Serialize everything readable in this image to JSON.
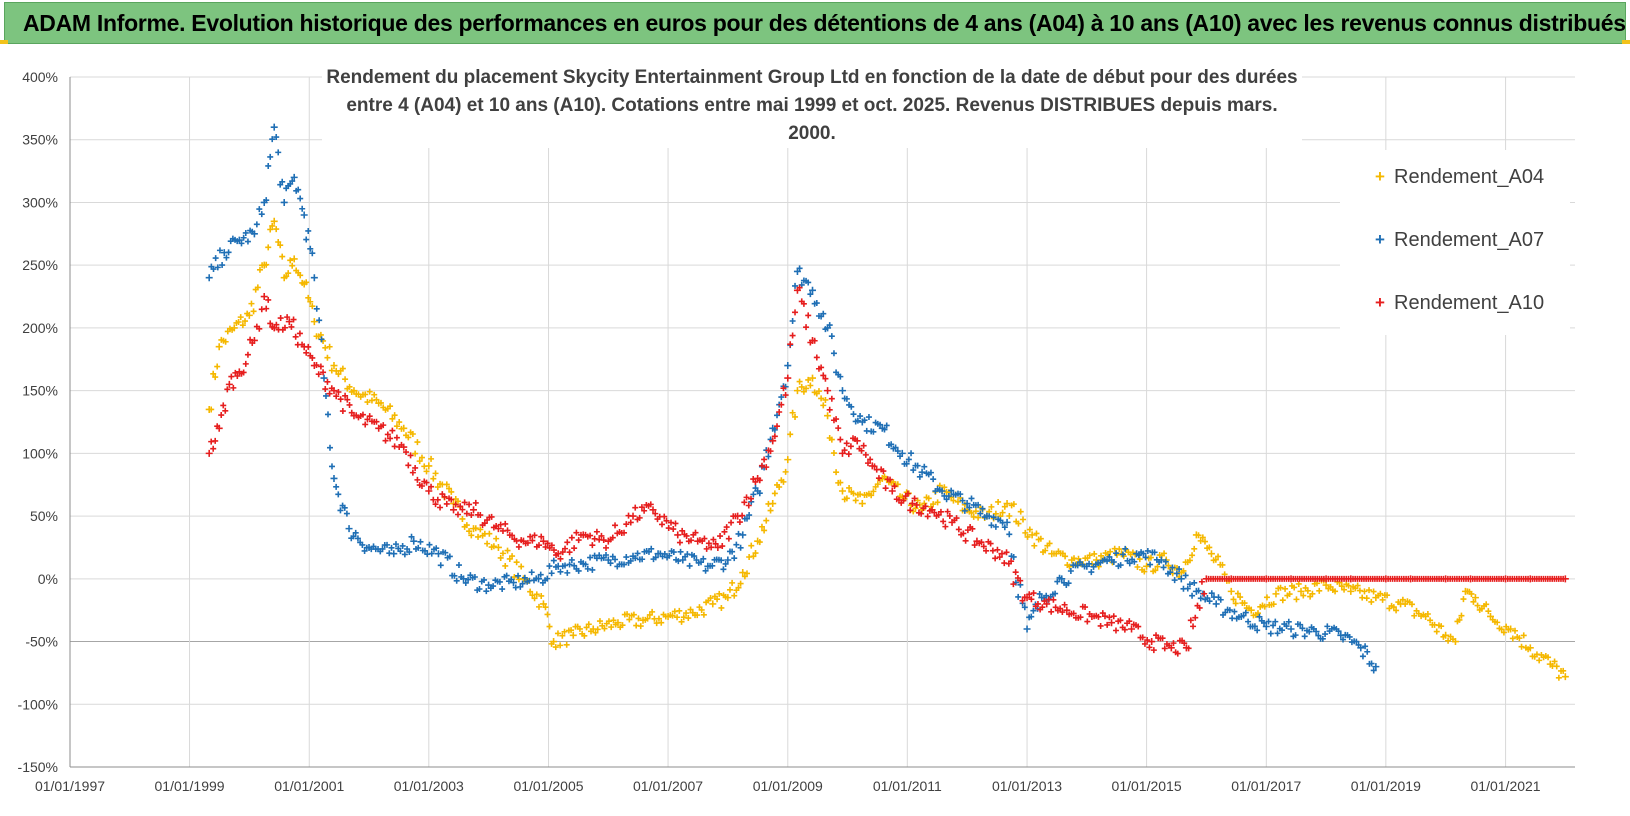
{
  "header": {
    "title": "ADAM Informe. Evolution historique des performances en euros pour des détentions de 4 ans (A04) à 10 ans (A10) avec les revenus connus distribués"
  },
  "colors": {
    "banner": "#7dc47f",
    "A04": "#f5b800",
    "A07": "#1f6fb5",
    "A10": "#e61e1e",
    "grid": "#d9d9d9",
    "zero_line": "#a6a6a6"
  },
  "chart_data": {
    "type": "scatter",
    "title_line1": "Rendement du placement Skycity Entertainment Group Ltd en fonction de la date de début pour des durées",
    "title_line2": "entre 4 (A04) et 10 ans (A10). Cotations entre mai 1999 et oct. 2025. Revenus DISTRIBUES depuis mars. 2000.",
    "xlabel": "",
    "ylabel": "",
    "grid": true,
    "legend_position": "right",
    "x_axis": {
      "type": "date",
      "range": [
        "1997-01-01",
        "2022-03-01"
      ],
      "ticks": [
        "01/01/1997",
        "01/01/1999",
        "01/01/2001",
        "01/01/2003",
        "01/01/2005",
        "01/01/2007",
        "01/01/2009",
        "01/01/2011",
        "01/01/2013",
        "01/01/2015",
        "01/01/2017",
        "01/01/2019",
        "01/01/2021"
      ]
    },
    "y_axis": {
      "range": [
        -150,
        400
      ],
      "unit": "%",
      "ticks": [
        "400%",
        "350%",
        "300%",
        "250%",
        "200%",
        "150%",
        "100%",
        "50%",
        "0%",
        "-50%",
        "-100%",
        "-150%"
      ],
      "tick_values": [
        400,
        350,
        300,
        250,
        200,
        150,
        100,
        50,
        0,
        -50,
        -100,
        -150
      ]
    },
    "series": [
      {
        "name": "Rendement_A04",
        "color": "#f5b800",
        "x": [
          "1999-05-01",
          "1999-07-01",
          "1999-10-01",
          "2000-01-01",
          "2000-04-01",
          "2000-06-01",
          "2000-08-01",
          "2000-10-01",
          "2000-12-01",
          "2001-02-01",
          "2001-06-01",
          "2001-10-01",
          "2002-03-01",
          "2002-08-01",
          "2003-01-01",
          "2003-06-01",
          "2003-10-01",
          "2004-03-01",
          "2004-08-01",
          "2004-12-01",
          "2005-02-01",
          "2005-06-01",
          "2005-10-01",
          "2006-03-01",
          "2006-08-01",
          "2007-01-01",
          "2007-06-01",
          "2007-10-01",
          "2008-01-01",
          "2008-04-01",
          "2008-07-01",
          "2008-10-01",
          "2009-01-01",
          "2009-03-01",
          "2009-06-01",
          "2009-09-01",
          "2009-12-01",
          "2010-04-01",
          "2010-08-01",
          "2010-12-01",
          "2011-04-01",
          "2011-08-01",
          "2012-01-01",
          "2012-05-01",
          "2012-09-01",
          "2013-02-01",
          "2013-06-01",
          "2013-10-01",
          "2014-03-01",
          "2014-08-01",
          "2015-01-01",
          "2015-05-01",
          "2015-08-01",
          "2015-11-01",
          "2016-02-01",
          "2016-06-01",
          "2016-10-01",
          "2017-03-01",
          "2017-08-01",
          "2018-01-01",
          "2018-06-01",
          "2018-11-01",
          "2019-04-01",
          "2019-09-01",
          "2020-01-01",
          "2020-03-01",
          "2020-05-01",
          "2020-07-01",
          "2020-10-01",
          "2021-02-01",
          "2021-06-01",
          "2021-10-01",
          "2022-01-01"
        ],
        "values": [
          135,
          185,
          200,
          210,
          250,
          285,
          240,
          255,
          235,
          205,
          170,
          150,
          140,
          120,
          90,
          60,
          40,
          25,
          0,
          -20,
          -50,
          -45,
          -40,
          -35,
          -33,
          -30,
          -27,
          -20,
          -15,
          5,
          30,
          60,
          95,
          150,
          160,
          130,
          70,
          60,
          80,
          65,
          55,
          70,
          55,
          50,
          60,
          35,
          20,
          15,
          15,
          20,
          10,
          15,
          5,
          35,
          20,
          -10,
          -25,
          -12,
          -10,
          -5,
          -10,
          -15,
          -20,
          -30,
          -45,
          -50,
          -10,
          -15,
          -30,
          -40,
          -55,
          -68,
          -78
        ]
      },
      {
        "name": "Rendement_A07",
        "color": "#1f6fb5",
        "x": [
          "1999-05-01",
          "1999-08-01",
          "1999-11-01",
          "2000-02-01",
          "2000-04-01",
          "2000-06-01",
          "2000-08-01",
          "2000-10-01",
          "2000-12-01",
          "2001-02-01",
          "2001-04-01",
          "2001-06-01",
          "2001-09-01",
          "2002-01-01",
          "2002-06-01",
          "2002-10-01",
          "2003-03-01",
          "2003-08-01",
          "2004-01-01",
          "2004-06-01",
          "2004-11-01",
          "2005-03-01",
          "2005-08-01",
          "2006-01-01",
          "2006-06-01",
          "2006-11-01",
          "2007-04-01",
          "2007-09-01",
          "2008-01-01",
          "2008-04-01",
          "2008-07-01",
          "2008-10-01",
          "2009-01-01",
          "2009-03-01",
          "2009-06-01",
          "2009-09-01",
          "2009-12-01",
          "2010-04-01",
          "2010-08-01",
          "2010-12-01",
          "2011-04-01",
          "2011-08-01",
          "2012-01-01",
          "2012-05-01",
          "2012-09-01",
          "2013-01-01",
          "2013-04-01",
          "2013-08-01",
          "2014-01-01",
          "2014-06-01",
          "2014-11-01",
          "2015-04-01",
          "2015-08-01",
          "2015-11-01",
          "2016-03-01",
          "2016-08-01",
          "2017-01-01",
          "2017-06-01",
          "2017-11-01",
          "2018-04-01",
          "2018-08-01",
          "2018-11-01"
        ],
        "values": [
          240,
          260,
          270,
          275,
          300,
          360,
          300,
          320,
          290,
          240,
          160,
          80,
          40,
          25,
          20,
          30,
          20,
          0,
          -5,
          -3,
          0,
          10,
          12,
          15,
          18,
          20,
          15,
          10,
          15,
          35,
          70,
          120,
          170,
          245,
          230,
          200,
          150,
          125,
          120,
          100,
          85,
          70,
          60,
          50,
          45,
          -40,
          -15,
          0,
          10,
          15,
          20,
          15,
          0,
          -10,
          -20,
          -30,
          -38,
          -40,
          -42,
          -45,
          -55,
          -70
        ]
      },
      {
        "name": "Rendement_A10",
        "color": "#e61e1e",
        "x": [
          "1999-05-01",
          "1999-07-01",
          "1999-09-01",
          "1999-11-01",
          "2000-02-01",
          "2000-04-01",
          "2000-06-01",
          "2000-09-01",
          "2000-12-01",
          "2001-02-01",
          "2001-06-01",
          "2001-10-01",
          "2002-03-01",
          "2002-08-01",
          "2003-01-01",
          "2003-06-01",
          "2003-10-01",
          "2004-03-01",
          "2004-08-01",
          "2004-12-01",
          "2005-03-01",
          "2005-08-01",
          "2006-01-01",
          "2006-06-01",
          "2006-10-01",
          "2007-03-01",
          "2007-07-01",
          "2007-11-01",
          "2008-03-01",
          "2008-07-01",
          "2008-10-01",
          "2009-01-01",
          "2009-03-01",
          "2009-06-01",
          "2009-09-01",
          "2009-12-01",
          "2010-03-01",
          "2010-06-01",
          "2010-10-01",
          "2011-02-01",
          "2011-06-01",
          "2011-10-01",
          "2012-03-01",
          "2012-08-01",
          "2013-01-01",
          "2013-05-01",
          "2013-09-01",
          "2014-02-01",
          "2014-06-01",
          "2014-10-01",
          "2015-02-01",
          "2015-06-01",
          "2015-09-01",
          "2016-01-01",
          "2016-06-01",
          "2017-01-01",
          "2017-06-01",
          "2018-01-01",
          "2018-06-01",
          "2019-01-01",
          "2019-06-01",
          "2020-01-01",
          "2020-06-01",
          "2021-01-01",
          "2021-06-01",
          "2022-01-01"
        ],
        "values": [
          100,
          120,
          155,
          165,
          190,
          225,
          200,
          205,
          185,
          170,
          150,
          130,
          120,
          105,
          70,
          55,
          55,
          40,
          30,
          30,
          20,
          35,
          30,
          50,
          55,
          35,
          30,
          25,
          50,
          80,
          110,
          160,
          230,
          190,
          150,
          100,
          110,
          90,
          70,
          60,
          55,
          45,
          30,
          20,
          -15,
          -20,
          -25,
          -30,
          -35,
          -40,
          -50,
          -55,
          -55,
          0,
          0,
          0,
          0,
          0,
          0,
          0,
          0,
          0,
          0,
          0,
          0,
          0
        ]
      }
    ]
  },
  "legend": {
    "items": [
      {
        "label": "Rendement_A04",
        "marker": "+"
      },
      {
        "label": "Rendement_A07",
        "marker": "+"
      },
      {
        "label": "Rendement_A10",
        "marker": "+"
      }
    ]
  }
}
